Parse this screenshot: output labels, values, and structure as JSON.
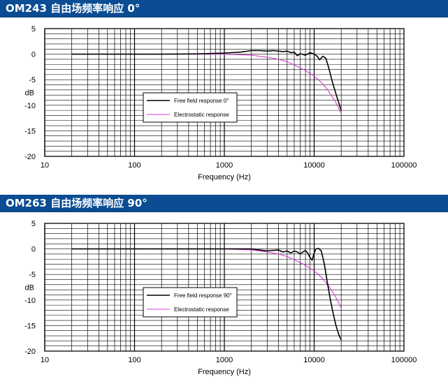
{
  "chart_data": [
    {
      "type": "line",
      "title": "OM243 自由场频率响应 0°",
      "xlabel": "Frequency (Hz)",
      "ylabel": "dB",
      "xscale": "log",
      "xlim": [
        10,
        100000
      ],
      "ylim": [
        -20,
        5
      ],
      "grid": true,
      "legend_position": "center",
      "x_tick_labels": [
        "10",
        "100",
        "1000",
        "10000",
        "100000"
      ],
      "y_tick_labels": [
        "5",
        "0",
        "-5",
        "-10",
        "-15",
        "-20"
      ],
      "series": [
        {
          "name": "Free field response 0°",
          "color": "#000000",
          "points": [
            [
              20,
              0
            ],
            [
              50,
              0
            ],
            [
              100,
              0
            ],
            [
              200,
              0
            ],
            [
              500,
              0.05
            ],
            [
              1000,
              0.2
            ],
            [
              1500,
              0.4
            ],
            [
              2000,
              0.7
            ],
            [
              2500,
              0.7
            ],
            [
              3000,
              0.6
            ],
            [
              3500,
              0.7
            ],
            [
              4000,
              0.6
            ],
            [
              4500,
              0.5
            ],
            [
              5000,
              0.6
            ],
            [
              5500,
              0.3
            ],
            [
              6000,
              0.4
            ],
            [
              6500,
              -0.3
            ],
            [
              7000,
              0.1
            ],
            [
              8000,
              -0.2
            ],
            [
              9000,
              0.3
            ],
            [
              10000,
              0
            ],
            [
              10800,
              -0.4
            ],
            [
              11500,
              -1.1
            ],
            [
              12500,
              -0.4
            ],
            [
              13500,
              -0.8
            ],
            [
              14500,
              -2.6
            ],
            [
              16000,
              -5.5
            ],
            [
              18000,
              -8.5
            ],
            [
              20000,
              -11
            ]
          ]
        },
        {
          "name": "Electrostatic response",
          "color": "#d63bd6",
          "points": [
            [
              100,
              0
            ],
            [
              500,
              0
            ],
            [
              1000,
              0
            ],
            [
              2000,
              -0.2
            ],
            [
              3000,
              -0.6
            ],
            [
              4000,
              -1
            ],
            [
              5000,
              -1.5
            ],
            [
              6000,
              -2.1
            ],
            [
              7000,
              -2.7
            ],
            [
              8000,
              -3.2
            ],
            [
              10000,
              -4.3
            ],
            [
              12000,
              -5.5
            ],
            [
              14000,
              -6.9
            ],
            [
              16000,
              -8.4
            ],
            [
              18000,
              -9.9
            ],
            [
              20000,
              -11.6
            ]
          ]
        }
      ]
    },
    {
      "type": "line",
      "title": "OM263 自由场频率响应 90°",
      "xlabel": "Frequency (Hz)",
      "ylabel": "dB",
      "xscale": "log",
      "xlim": [
        10,
        100000
      ],
      "ylim": [
        -20,
        5
      ],
      "grid": true,
      "legend_position": "center",
      "x_tick_labels": [
        "10",
        "100",
        "1000",
        "10000",
        "100000"
      ],
      "y_tick_labels": [
        "5",
        "0",
        "-5",
        "-10",
        "-15",
        "-20"
      ],
      "series": [
        {
          "name": "Free field response 90°",
          "color": "#000000",
          "points": [
            [
              20,
              0
            ],
            [
              50,
              0
            ],
            [
              100,
              0
            ],
            [
              300,
              0
            ],
            [
              1000,
              0
            ],
            [
              2000,
              0
            ],
            [
              3000,
              -0.4
            ],
            [
              4000,
              -0.2
            ],
            [
              4500,
              -0.6
            ],
            [
              5000,
              -0.4
            ],
            [
              5500,
              -0.8
            ],
            [
              6000,
              -0.4
            ],
            [
              6500,
              -0.6
            ],
            [
              7000,
              -1
            ],
            [
              7500,
              -0.6
            ],
            [
              8000,
              -0.3
            ],
            [
              8500,
              -0.8
            ],
            [
              9000,
              -1.7
            ],
            [
              9500,
              -2.2
            ],
            [
              10000,
              -0.8
            ],
            [
              10500,
              0
            ],
            [
              11200,
              0.1
            ],
            [
              12000,
              -0.4
            ],
            [
              13000,
              -3
            ],
            [
              14000,
              -6.5
            ],
            [
              15000,
              -9.5
            ],
            [
              16000,
              -12
            ],
            [
              17500,
              -15
            ],
            [
              19000,
              -17
            ],
            [
              20000,
              -17.8
            ]
          ]
        },
        {
          "name": "Electrostatic response",
          "color": "#d63bd6",
          "points": [
            [
              100,
              0
            ],
            [
              500,
              0
            ],
            [
              1000,
              0
            ],
            [
              2000,
              -0.2
            ],
            [
              3000,
              -0.6
            ],
            [
              4000,
              -1
            ],
            [
              5000,
              -1.5
            ],
            [
              6000,
              -2.1
            ],
            [
              7000,
              -2.7
            ],
            [
              8000,
              -3.2
            ],
            [
              10000,
              -4.3
            ],
            [
              12000,
              -5.5
            ],
            [
              14000,
              -6.9
            ],
            [
              16000,
              -8.4
            ],
            [
              18000,
              -9.9
            ],
            [
              20000,
              -11.6
            ]
          ]
        }
      ]
    }
  ]
}
